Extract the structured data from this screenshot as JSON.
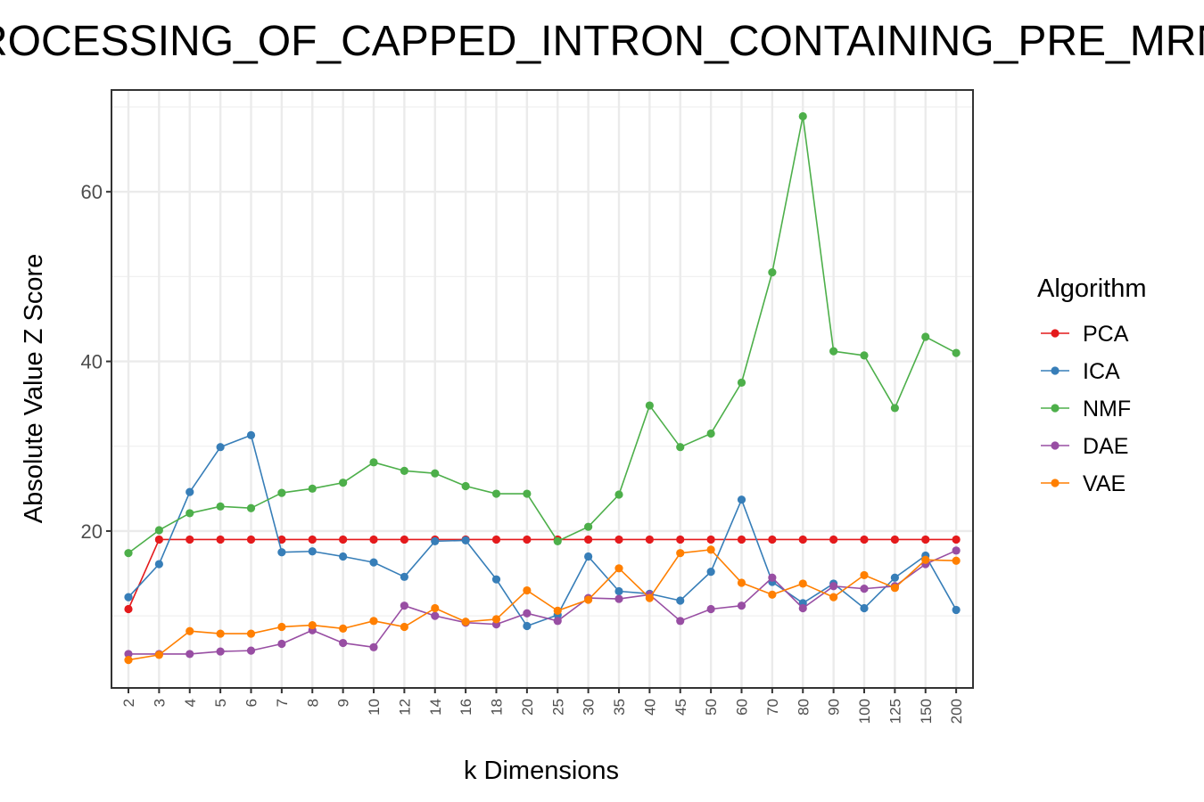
{
  "chart_data": {
    "type": "line",
    "title": "PROCESSING_OF_CAPPED_INTRON_CONTAINING_PRE_MRNA",
    "xlabel": "k Dimensions",
    "ylabel": "Absolute Value Z Score",
    "categories": [
      "2",
      "3",
      "4",
      "5",
      "6",
      "7",
      "8",
      "9",
      "10",
      "12",
      "14",
      "16",
      "18",
      "20",
      "25",
      "30",
      "35",
      "40",
      "45",
      "50",
      "60",
      "70",
      "80",
      "90",
      "100",
      "125",
      "150",
      "200"
    ],
    "yticks": [
      "20",
      "40",
      "60"
    ],
    "ylim": [
      1.5,
      72
    ],
    "grid": true,
    "legend": {
      "title": "Algorithm",
      "position": "right"
    },
    "series": [
      {
        "name": "PCA",
        "color": "#e41a1c",
        "values": [
          10.8,
          19,
          19,
          19,
          19,
          19,
          19,
          19,
          19,
          19,
          19,
          19,
          19,
          19,
          19,
          19,
          19,
          19,
          19,
          19,
          19,
          19,
          19,
          19,
          19,
          19,
          19,
          19
        ]
      },
      {
        "name": "ICA",
        "color": "#377eb8",
        "values": [
          12.2,
          16.1,
          24.6,
          29.9,
          31.3,
          17.5,
          17.6,
          17.0,
          16.3,
          14.6,
          18.8,
          18.9,
          14.3,
          8.8,
          10.1,
          17.0,
          12.9,
          12.6,
          11.8,
          15.2,
          23.7,
          14.0,
          11.5,
          13.8,
          10.9,
          14.5,
          17.1,
          10.7
        ]
      },
      {
        "name": "NMF",
        "color": "#4daf4a",
        "values": [
          17.4,
          20.1,
          22.1,
          22.9,
          22.7,
          24.5,
          25.0,
          25.7,
          28.1,
          27.1,
          26.8,
          25.3,
          24.4,
          24.4,
          18.8,
          20.5,
          24.3,
          34.8,
          29.9,
          31.5,
          37.5,
          50.5,
          68.9,
          41.2,
          40.7,
          34.5,
          42.9,
          41.0
        ]
      },
      {
        "name": "DAE",
        "color": "#984ea3",
        "values": [
          5.5,
          5.5,
          5.5,
          5.8,
          5.9,
          6.7,
          8.3,
          6.8,
          6.3,
          11.2,
          10.0,
          9.2,
          9.0,
          10.3,
          9.4,
          12.1,
          12.0,
          12.5,
          9.4,
          10.8,
          11.2,
          14.5,
          10.9,
          13.5,
          13.2,
          13.5,
          16.1,
          17.7
        ]
      },
      {
        "name": "VAE",
        "color": "#ff7f00",
        "values": [
          4.8,
          5.4,
          8.2,
          7.9,
          7.9,
          8.7,
          8.9,
          8.5,
          9.4,
          8.7,
          10.9,
          9.3,
          9.6,
          13.0,
          10.6,
          11.9,
          15.6,
          12.1,
          17.4,
          17.8,
          13.9,
          12.5,
          13.8,
          12.2,
          14.8,
          13.3,
          16.6,
          16.5
        ]
      }
    ]
  }
}
